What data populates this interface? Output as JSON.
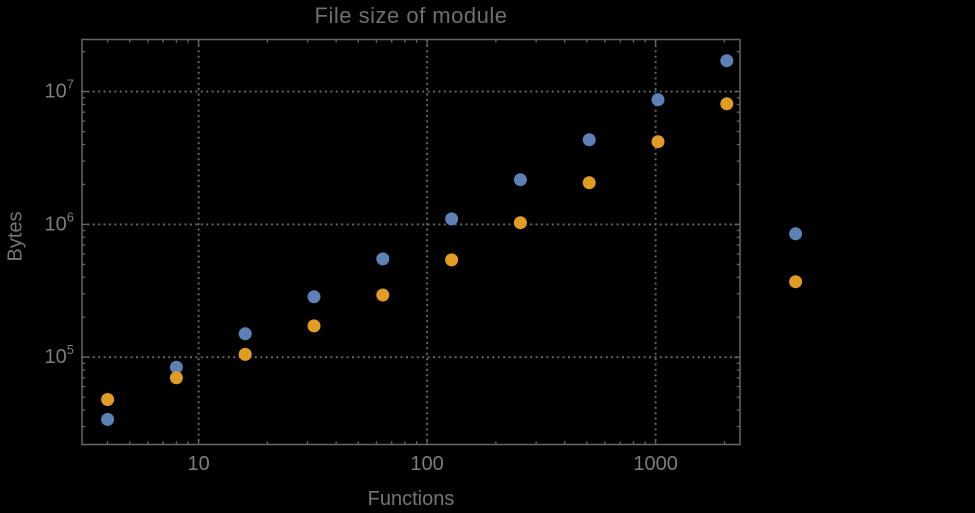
{
  "chart_data": {
    "type": "scatter",
    "title": "File size of module",
    "xlabel": "Functions",
    "ylabel": "Bytes",
    "x_scale": "log",
    "y_scale": "log",
    "xlim": [
      3.09,
      2340
    ],
    "ylim": [
      22000,
      24700000
    ],
    "grid": "dotted",
    "x_gridlines": [
      10,
      100,
      1000
    ],
    "y_gridlines": [
      100000,
      1000000,
      10000000
    ],
    "x_ticks": [
      {
        "value": 10,
        "label": "10"
      },
      {
        "value": 100,
        "label": "100"
      },
      {
        "value": 1000,
        "label": "1000"
      }
    ],
    "y_ticks": [
      {
        "value": 100000,
        "base": "10",
        "exp": "5"
      },
      {
        "value": 1000000,
        "base": "10",
        "exp": "6"
      },
      {
        "value": 10000000,
        "base": "10",
        "exp": "7"
      }
    ],
    "series": [
      {
        "name": "blue-series",
        "color": "#5e81b5",
        "points": [
          [
            4,
            34000
          ],
          [
            8,
            84000
          ],
          [
            16,
            150000
          ],
          [
            32,
            285000
          ],
          [
            64,
            550000
          ],
          [
            128,
            1100000
          ],
          [
            256,
            2170000
          ],
          [
            512,
            4340000
          ],
          [
            1024,
            8700000
          ],
          [
            2048,
            17100000
          ]
        ]
      },
      {
        "name": "orange-series",
        "color": "#e19c24",
        "points": [
          [
            4,
            48000
          ],
          [
            8,
            70000
          ],
          [
            16,
            105000
          ],
          [
            32,
            172000
          ],
          [
            64,
            294000
          ],
          [
            128,
            540000
          ],
          [
            256,
            1030000
          ],
          [
            512,
            2060000
          ],
          [
            1024,
            4200000
          ],
          [
            2048,
            8100000
          ]
        ]
      }
    ],
    "right_markers": [
      {
        "color": "#5e81b5",
        "x": 4096,
        "y": 850000,
        "outside_plot_frame": true
      },
      {
        "color": "#e19c24",
        "x": 4096,
        "y": 370000,
        "outside_plot_frame": true
      }
    ],
    "marker_diameter_px": 13
  },
  "colors": {
    "background": "#000000",
    "frame": "#666666",
    "grid": "#696969",
    "tick_label": "#7d7d7d",
    "title": "#6f6f6f",
    "axis_label": "#767676"
  }
}
